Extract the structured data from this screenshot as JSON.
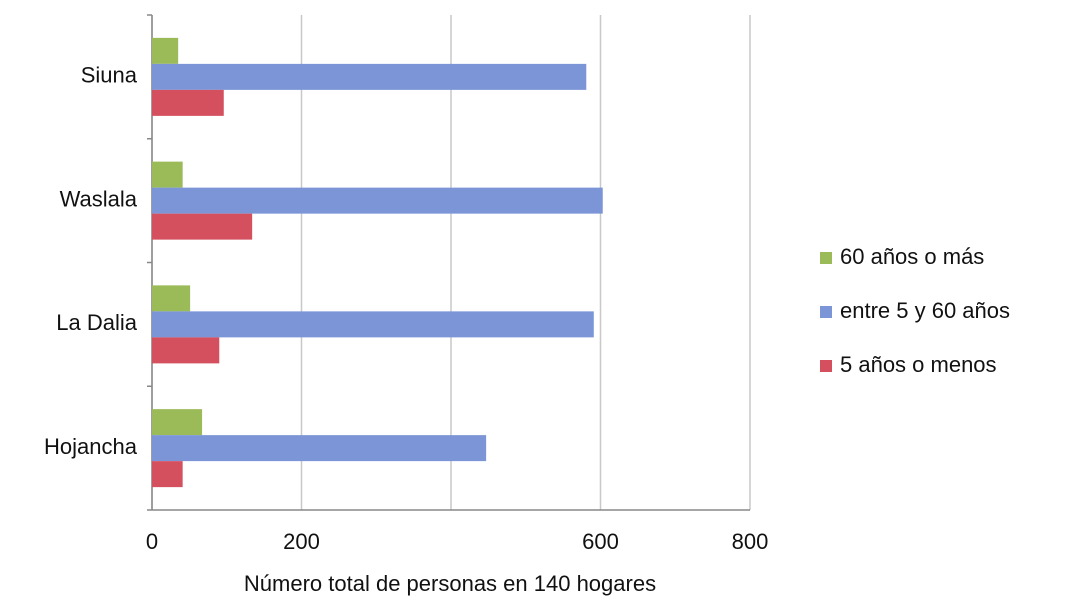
{
  "chart_data": {
    "type": "hbar",
    "x_label": "Número total de personas en 140 hogares",
    "categories": [
      "Siuna",
      "Waslala",
      "La Dalia",
      "Hojancha"
    ],
    "series": [
      {
        "name": "60 años o más",
        "color": "#9bbb59",
        "values": [
          35,
          41,
          51,
          67
        ]
      },
      {
        "name": "entre 5 y 60 años",
        "color": "#7b95d6",
        "values": [
          581,
          603,
          591,
          447
        ]
      },
      {
        "name": "5 años o menos",
        "color": "#d4505f",
        "values": [
          96,
          134,
          90,
          41
        ]
      }
    ],
    "xlim": [
      0,
      800
    ],
    "xticks": [
      0,
      200,
      {
        "value": 400,
        "label": null
      },
      600,
      800
    ],
    "grid": true,
    "legend": "right"
  }
}
